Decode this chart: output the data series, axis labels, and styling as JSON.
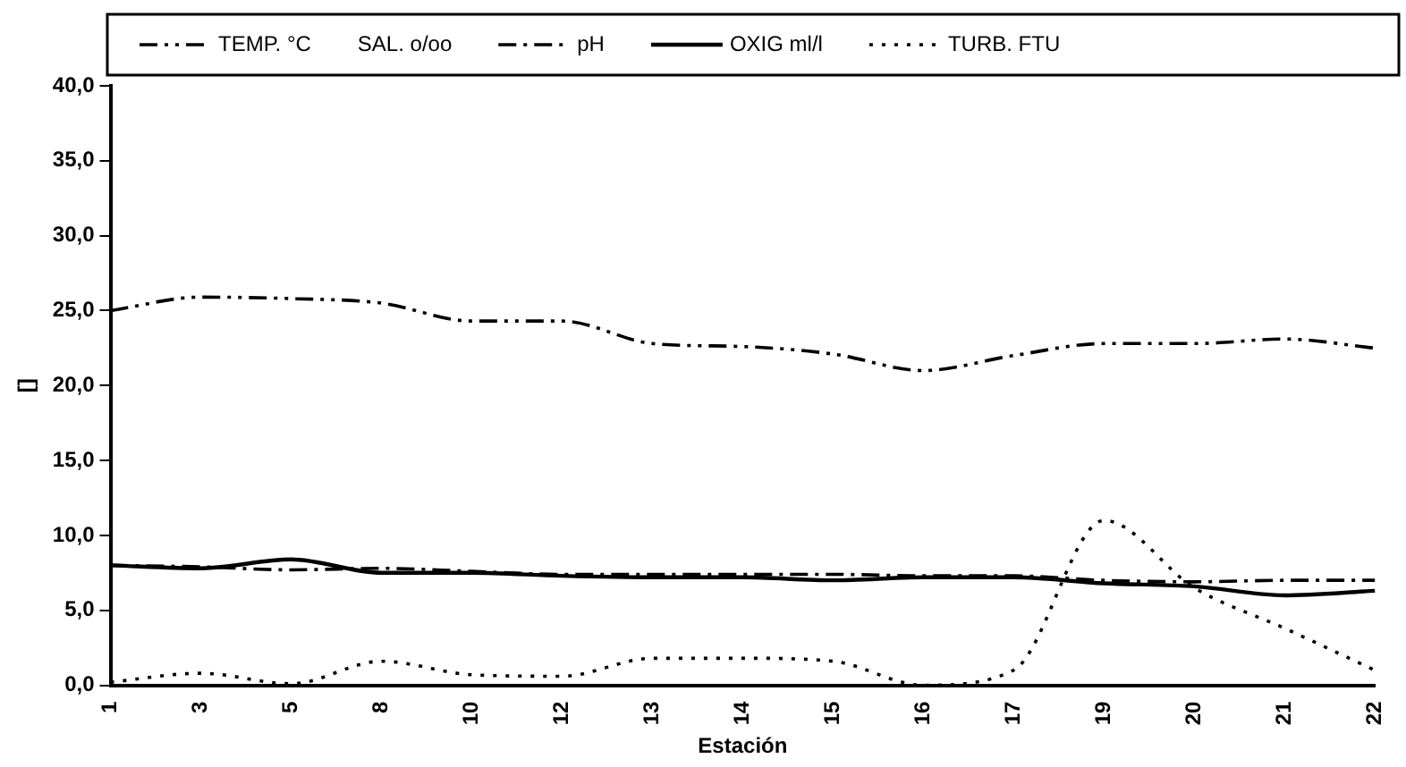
{
  "chart_data": {
    "type": "line",
    "xlabel": "Estación",
    "ylabel": "[]",
    "categories": [
      "1",
      "3",
      "5",
      "8",
      "10",
      "12",
      "13",
      "14",
      "15",
      "16",
      "17",
      "19",
      "20",
      "21",
      "22"
    ],
    "series": [
      {
        "name": "TEMP. °C",
        "color": "#000000",
        "line_style": "dashdotdot",
        "values": [
          25.0,
          25.9,
          25.8,
          25.5,
          24.3,
          24.3,
          22.8,
          22.6,
          22.1,
          21.0,
          22.0,
          22.8,
          22.8,
          23.1,
          22.5
        ]
      },
      {
        "name": "SAL. o/oo",
        "color": "#000000",
        "line_style": "none",
        "values": [
          null,
          null,
          null,
          null,
          null,
          null,
          null,
          null,
          null,
          null,
          null,
          null,
          null,
          null,
          null
        ]
      },
      {
        "name": "pH",
        "color": "#000000",
        "line_style": "dashdot",
        "values": [
          8.0,
          7.9,
          7.7,
          7.8,
          7.6,
          7.4,
          7.4,
          7.4,
          7.4,
          7.3,
          7.3,
          7.0,
          6.9,
          7.0,
          7.0
        ]
      },
      {
        "name": "OXIG ml/l",
        "color": "#000000",
        "line_style": "solid",
        "values": [
          8.0,
          7.8,
          8.4,
          7.5,
          7.5,
          7.3,
          7.2,
          7.2,
          7.0,
          7.2,
          7.2,
          6.8,
          6.6,
          6.0,
          6.3
        ]
      },
      {
        "name": "TURB. FTU",
        "color": "#000000",
        "line_style": "dotted",
        "values": [
          0.2,
          0.8,
          0.1,
          1.6,
          0.7,
          0.6,
          1.8,
          1.8,
          1.6,
          0.0,
          1.0,
          11.0,
          6.5,
          3.8,
          1.0
        ]
      }
    ],
    "ylim": [
      0,
      40
    ],
    "yticks": [
      {
        "value": 0,
        "label": "0,0"
      },
      {
        "value": 5,
        "label": "5,0"
      },
      {
        "value": 10,
        "label": "10,0"
      },
      {
        "value": 15,
        "label": "15,0"
      },
      {
        "value": 20,
        "label": "20,0"
      },
      {
        "value": 25,
        "label": "25,0"
      },
      {
        "value": 30,
        "label": "30,0"
      },
      {
        "value": 35,
        "label": "35,0"
      },
      {
        "value": 40,
        "label": "40,0"
      }
    ],
    "grid": false,
    "legend": "top",
    "marker": "none"
  }
}
